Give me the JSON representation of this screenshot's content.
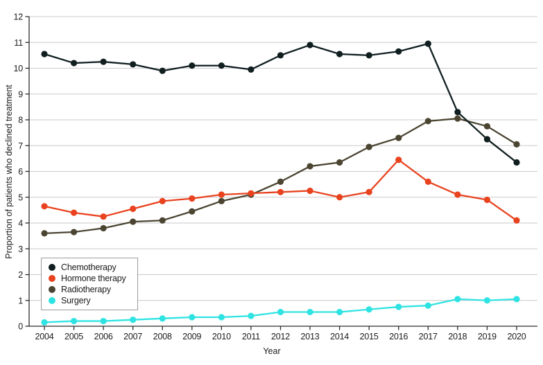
{
  "chart_data": {
    "type": "line",
    "title": "",
    "xlabel": "Year",
    "ylabel": "Proportion of patients who declined treatment",
    "x": [
      2004,
      2005,
      2006,
      2007,
      2008,
      2009,
      2010,
      2011,
      2012,
      2013,
      2014,
      2015,
      2016,
      2017,
      2018,
      2019,
      2020
    ],
    "series": [
      {
        "name": "Chemotherapy",
        "color": "#101E20",
        "values": [
          10.55,
          10.2,
          10.25,
          10.15,
          9.9,
          10.1,
          10.1,
          9.95,
          10.5,
          10.9,
          10.55,
          10.5,
          10.65,
          10.95,
          8.3,
          7.25,
          6.35
        ]
      },
      {
        "name": "Hormone therapy",
        "color": "#E9421E",
        "values": [
          4.65,
          4.4,
          4.25,
          4.55,
          4.85,
          4.95,
          5.1,
          5.15,
          5.2,
          5.25,
          5.0,
          5.2,
          6.45,
          5.6,
          5.1,
          4.9,
          4.1
        ]
      },
      {
        "name": "Radiotherapy",
        "color": "#4A4431",
        "values": [
          3.6,
          3.65,
          3.8,
          4.05,
          4.1,
          4.45,
          4.85,
          5.1,
          5.6,
          6.2,
          6.35,
          6.95,
          7.3,
          7.95,
          8.05,
          7.75,
          7.05
        ]
      },
      {
        "name": "Surgery",
        "color": "#2FE3E3",
        "values": [
          0.15,
          0.2,
          0.2,
          0.25,
          0.3,
          0.35,
          0.35,
          0.4,
          0.55,
          0.55,
          0.55,
          0.65,
          0.75,
          0.8,
          1.05,
          1.0,
          1.05
        ]
      }
    ],
    "ylim": [
      0,
      12
    ],
    "ytick_step": 1,
    "grid": "horizontal",
    "legend_position": "lower-left"
  },
  "colors": {
    "grid": "#C9C9C9",
    "axis": "#2B2B2B",
    "text": "#1A1A1A",
    "background": "#FFFFFF"
  }
}
